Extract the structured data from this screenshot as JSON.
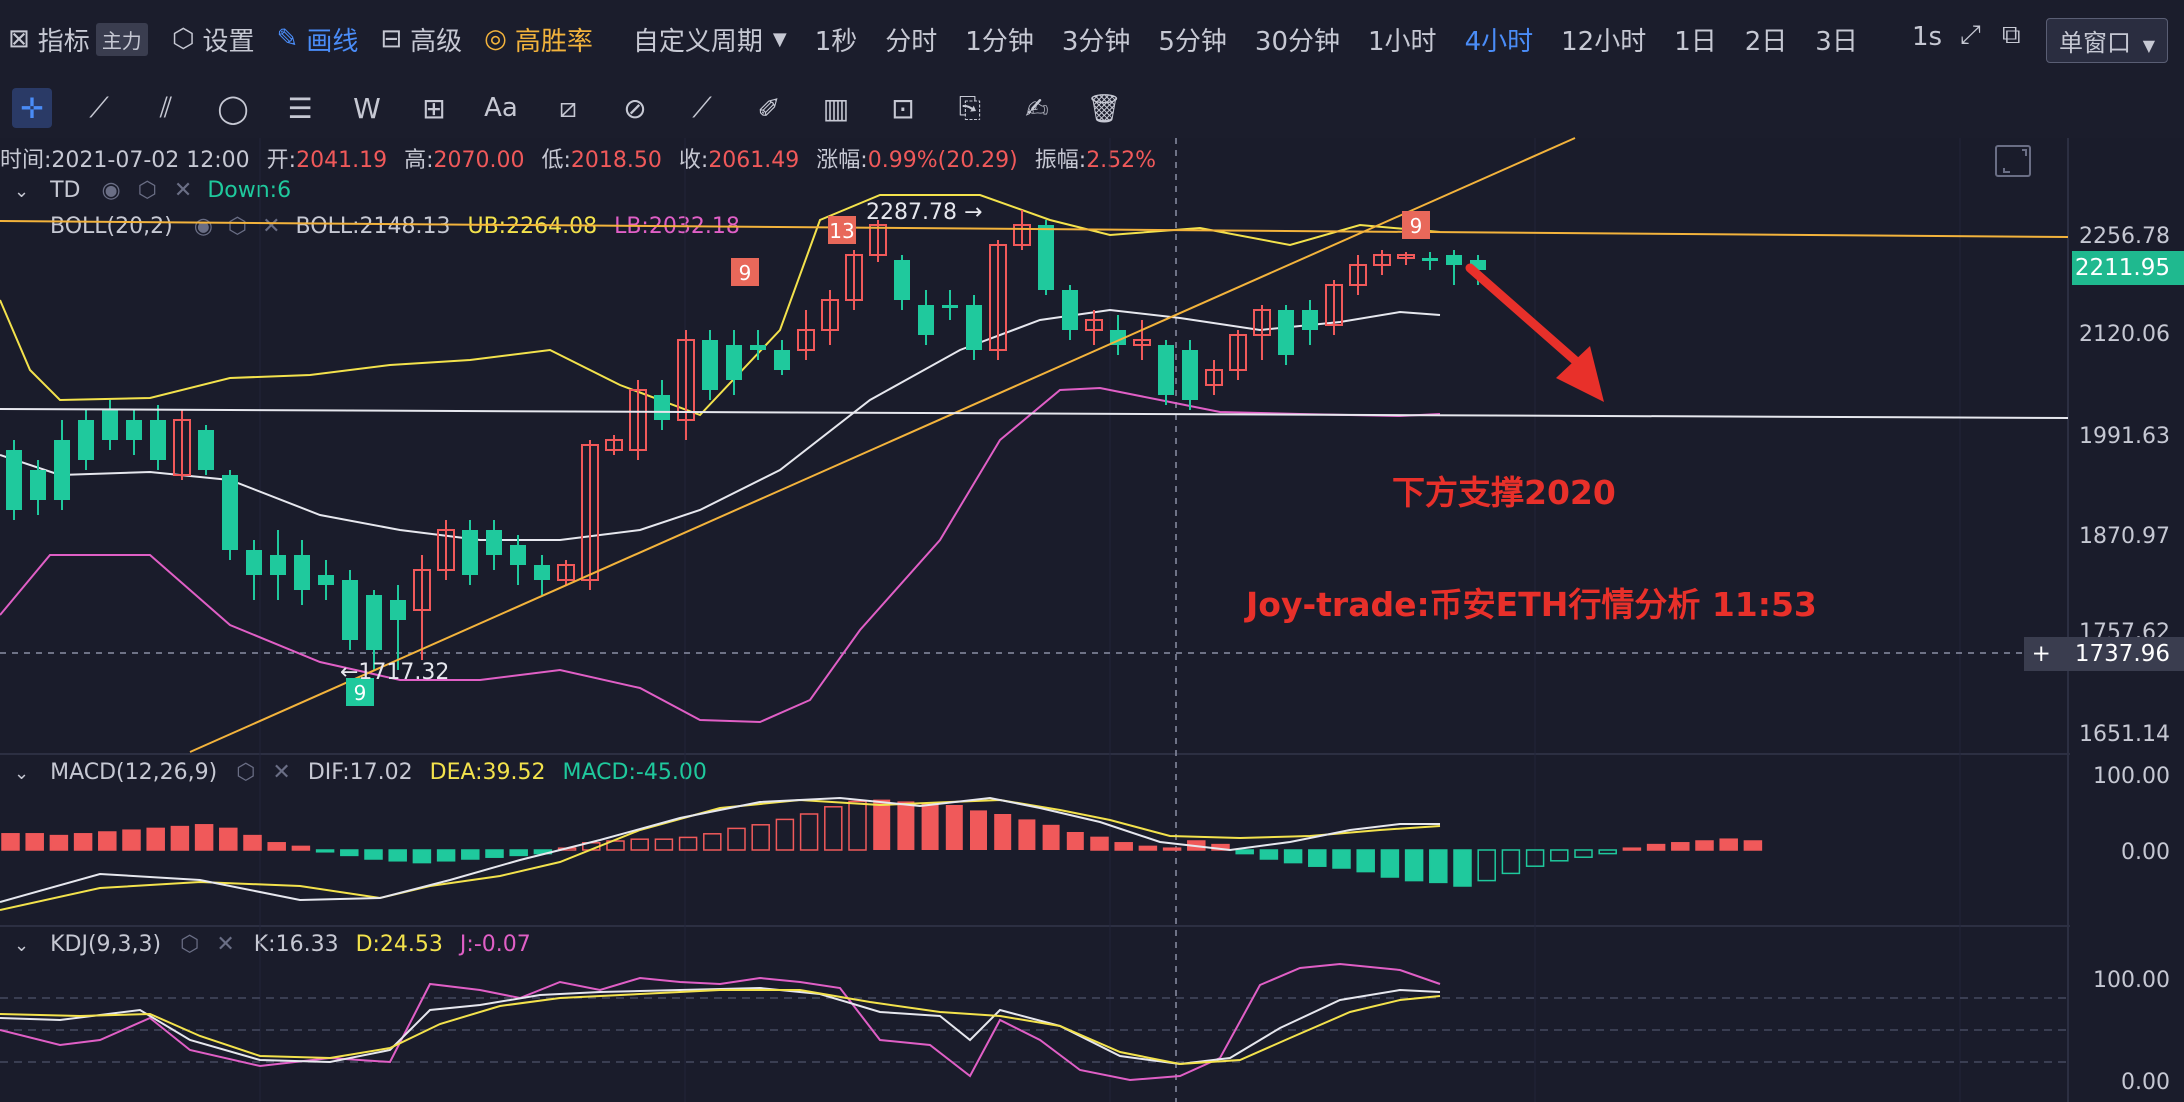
{
  "topbar": {
    "indicator": "指标",
    "main_badge": "主力",
    "settings": "设置",
    "draw_line": "画线",
    "advanced": "高级",
    "win_rate": "高胜率",
    "custom_period": "自定义周期",
    "periods": [
      "1秒",
      "分时",
      "1分钟",
      "3分钟",
      "5分钟",
      "30分钟",
      "1小时",
      "4小时",
      "12小时",
      "1日",
      "2日",
      "3日"
    ],
    "active_period": "4小时",
    "right_interval": "1s",
    "window_mode": "单窗口"
  },
  "info": {
    "time_label": "时间:",
    "time": "2021-07-02 12:00",
    "open_label": "开:",
    "open": "2041.19",
    "high_label": "高:",
    "high": "2070.00",
    "low_label": "低:",
    "low": "2018.50",
    "close_label": "收:",
    "close": "2061.49",
    "change_label": "涨幅:",
    "change": "0.99%(20.29)",
    "amplitude_label": "振幅:",
    "amplitude": "2.52%"
  },
  "indicators": {
    "td": {
      "name": "TD",
      "value": "Down:6"
    },
    "boll": {
      "name": "BOLL(20,2)",
      "mid": "BOLL:2148.13",
      "ub": "UB:2264.08",
      "lb": "LB:2032.18"
    },
    "macd": {
      "name": "MACD(12,26,9)",
      "dif": "DIF:17.02",
      "dea": "DEA:39.52",
      "macd": "MACD:-45.00"
    },
    "kdj": {
      "name": "KDJ(9,3,3)",
      "k": "K:16.33",
      "d": "D:24.53",
      "j": "J:-0.07"
    }
  },
  "price_axis": [
    "2256.78",
    "2120.06",
    "1991.63",
    "1870.97",
    "1757.62",
    "1651.14"
  ],
  "current_price": "2211.95",
  "crosshair_price": "1737.96",
  "macd_axis": [
    "100.00",
    "0.00"
  ],
  "kdj_axis": [
    "100.00",
    "0.00"
  ],
  "annotations": {
    "high_mark": "2287.78 →",
    "low_mark": "←1717.32",
    "support_text": "下方支撑2020",
    "watermark_text": "Joy-trade:币安ETH行情分析 11:53",
    "td_counts": [
      "9",
      "13",
      "9",
      "9"
    ]
  },
  "colors": {
    "up": "#f0595a",
    "down": "#1fc99d",
    "background": "#1a1c2b",
    "accent": "#4a8cf7",
    "annotation": "#e8302a"
  }
}
